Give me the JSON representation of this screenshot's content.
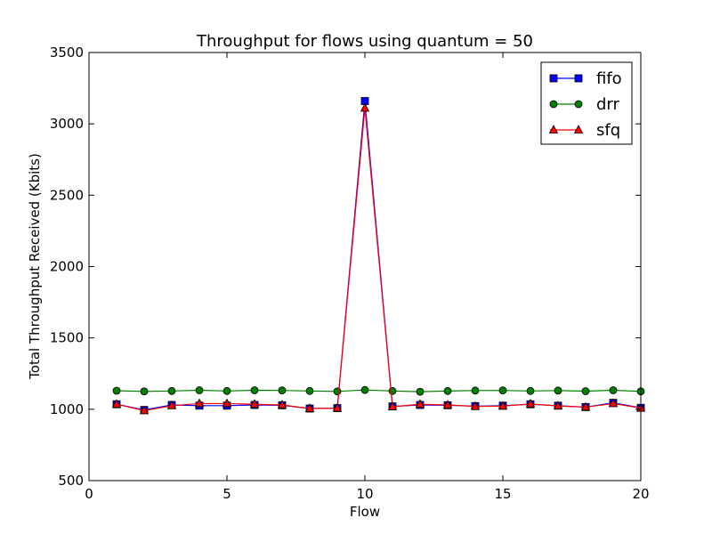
{
  "chart_data": {
    "type": "line",
    "title": "Throughput for flows using quantum = 50",
    "xlabel": "Flow",
    "ylabel": "Total Throughput Received (Kbits)",
    "xlim": [
      0,
      20
    ],
    "ylim": [
      500,
      3500
    ],
    "xticks": [
      0,
      5,
      10,
      15,
      20
    ],
    "yticks": [
      500,
      1000,
      1500,
      2000,
      2500,
      3000,
      3500
    ],
    "grid": false,
    "legend_position": "top-right",
    "x": [
      1,
      2,
      3,
      4,
      5,
      6,
      7,
      8,
      9,
      10,
      11,
      12,
      13,
      14,
      15,
      16,
      17,
      18,
      19,
      20
    ],
    "series": [
      {
        "name": "fifo",
        "color": "#0000ff",
        "marker": "square",
        "values": [
          1035,
          995,
          1030,
          1025,
          1025,
          1030,
          1028,
          1005,
          1008,
          3160,
          1020,
          1030,
          1028,
          1022,
          1025,
          1035,
          1025,
          1015,
          1045,
          1010
        ]
      },
      {
        "name": "drr",
        "color": "#008000",
        "marker": "circle",
        "values": [
          1130,
          1125,
          1128,
          1133,
          1128,
          1133,
          1132,
          1128,
          1125,
          1135,
          1128,
          1123,
          1128,
          1131,
          1132,
          1128,
          1131,
          1127,
          1133,
          1125
        ]
      },
      {
        "name": "sfq",
        "color": "#ff0000",
        "marker": "triangle",
        "values": [
          1035,
          990,
          1025,
          1040,
          1040,
          1035,
          1030,
          1005,
          1008,
          3110,
          1018,
          1035,
          1030,
          1020,
          1022,
          1037,
          1023,
          1015,
          1040,
          1008
        ]
      }
    ]
  }
}
